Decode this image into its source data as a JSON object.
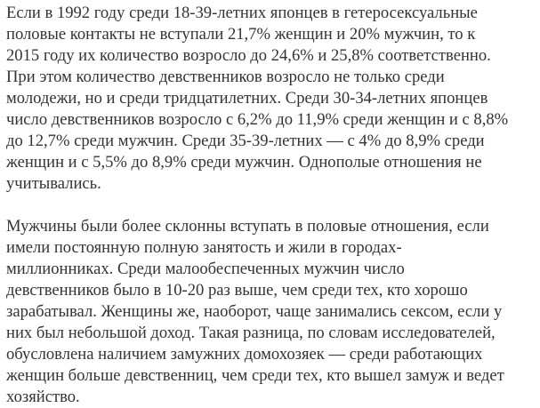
{
  "paragraphs": [
    {
      "lines": [
        "Если в 1992 году среди 18-39-летних японцев в гетеросексуальные",
        "половые контакты не вступали 21,7% женщин и 20% мужчин, то к",
        "2015 году их количество возросло до 24,6% и 25,8% соответственно.",
        "При этом количество девственников возросло не только среди",
        "молодежи, но и среди тридцатилетних. Среди 30-34-летних японцев",
        "число девственников возросло с 6,2% до 11,9% среди женщин и с 8,8%",
        "до 12,7% среди мужчин. Среди 35-39-летних — с 4% до 8,9% среди",
        "женщин и с 5,5% до 8,9% среди мужчин. Однополые отношения не",
        "учитывались."
      ]
    },
    {
      "lines": [
        "Мужчины были более склонны вступать в половые отношения, если",
        "имели постоянную полную занятость и жили в городах-",
        "миллионниках. Среди малообеспеченных мужчин число",
        "девственников было в 10-20 раз выше, чем среди тех, кто хорошо",
        "зарабатывал. Женщины же, наоборот, чаще занимались сексом, если у",
        "них был небольшой доход. Такая разница, по словам исследователей,",
        "обусловлена наличием замужних домохозяек — среди работающих",
        "женщин больше девственниц, чем среди тех, кто вышел замуж и ведет",
        "хозяйство."
      ]
    }
  ]
}
